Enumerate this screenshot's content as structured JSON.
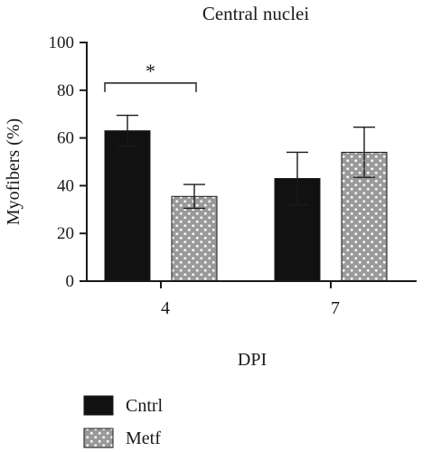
{
  "chart_data": {
    "type": "bar",
    "title": "Central nuclei",
    "xlabel": "DPI",
    "ylabel": "Myofibers (%)",
    "ylim": [
      0,
      100
    ],
    "yticks": [
      0,
      20,
      40,
      60,
      80,
      100
    ],
    "categories": [
      "4",
      "7"
    ],
    "series": [
      {
        "name": "Cntrl",
        "values": [
          63,
          43
        ],
        "errors": [
          6.5,
          11
        ],
        "pattern": "solid",
        "color": "#111111"
      },
      {
        "name": "Metf",
        "values": [
          35.5,
          54
        ],
        "errors": [
          5,
          10.5
        ],
        "pattern": "dots",
        "color": "#9a9a9a"
      }
    ],
    "annotations": [
      {
        "text": "*",
        "between": [
          "4:Cntrl",
          "4:Metf"
        ],
        "y": 83
      }
    ],
    "legend": "bottom-left",
    "grid": false
  }
}
